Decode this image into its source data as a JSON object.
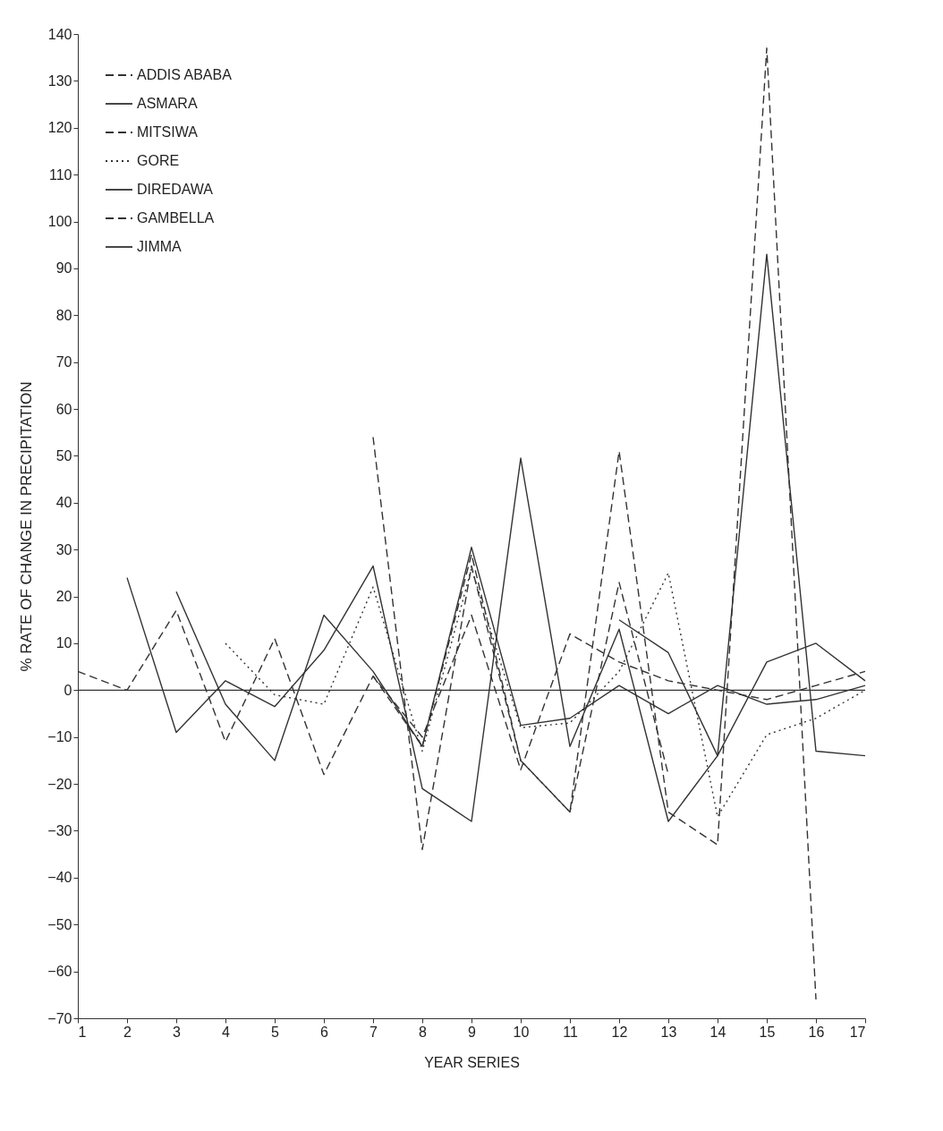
{
  "chart_data": {
    "type": "line",
    "xlabel": "YEAR SERIES",
    "ylabel": "% RATE OF CHANGE IN PRECIPITATION",
    "x": [
      1,
      2,
      3,
      4,
      5,
      6,
      7,
      8,
      9,
      10,
      11,
      12,
      13,
      14,
      15,
      16,
      17
    ],
    "series": [
      {
        "name": "ADDIS ABABA",
        "color": "#333333",
        "line_style": "dashed",
        "values": [
          4,
          0,
          17,
          -11,
          11,
          -18,
          3,
          -10,
          16,
          -17,
          12,
          6,
          2,
          0,
          -2,
          1,
          4
        ]
      },
      {
        "name": "ASMARA",
        "color": "#333333",
        "line_style": "solid",
        "values": [
          null,
          24,
          -9,
          2,
          -3.5,
          8.5,
          26.5,
          -21,
          -28,
          49.5,
          -12,
          13,
          -28,
          -14,
          93,
          -13,
          -14
        ]
      },
      {
        "name": "MITSIWA",
        "color": "#333333",
        "line_style": "dashed",
        "values": [
          null,
          null,
          null,
          null,
          null,
          null,
          54,
          -34,
          26.5,
          -15,
          -26,
          51,
          -26,
          -33,
          137,
          -66,
          null
        ]
      },
      {
        "name": "GORE",
        "color": "#333333",
        "line_style": "dotted",
        "values": [
          null,
          null,
          null,
          10,
          -1,
          -3,
          22,
          -13,
          26,
          -8,
          -7,
          4,
          25,
          -27,
          -9.5,
          -6,
          0
        ]
      },
      {
        "name": "DIREDAWA",
        "color": "#333333",
        "line_style": "solid",
        "values": [
          null,
          null,
          null,
          null,
          null,
          null,
          null,
          null,
          null,
          null,
          null,
          15,
          8,
          -14,
          6,
          10,
          2
        ]
      },
      {
        "name": "GAMBELLA",
        "color": "#333333",
        "line_style": "dashed",
        "values": [
          null,
          null,
          null,
          null,
          null,
          null,
          3,
          -12,
          29,
          -15,
          -26,
          23,
          -18,
          null,
          null,
          null,
          null
        ]
      },
      {
        "name": "JIMMA",
        "color": "#333333",
        "line_style": "solid",
        "values": [
          null,
          null,
          21,
          -3,
          -15,
          16,
          4,
          -12,
          30.5,
          -7.5,
          -6,
          1,
          -5,
          1,
          -3,
          -2,
          1
        ]
      }
    ],
    "xlim": [
      1,
      17
    ],
    "xticks": [
      1,
      2,
      3,
      4,
      5,
      6,
      7,
      8,
      9,
      10,
      11,
      12,
      13,
      14,
      15,
      16,
      17
    ],
    "ylim": [
      -70,
      140
    ],
    "yticks": [
      -70,
      -60,
      -50,
      -40,
      -30,
      -20,
      -10,
      0,
      10,
      20,
      30,
      40,
      50,
      60,
      70,
      80,
      90,
      100,
      110,
      120,
      130,
      140
    ],
    "ref_lines": [
      {
        "axis": "y",
        "value": 0
      }
    ],
    "grid": false,
    "legend": "top left"
  }
}
